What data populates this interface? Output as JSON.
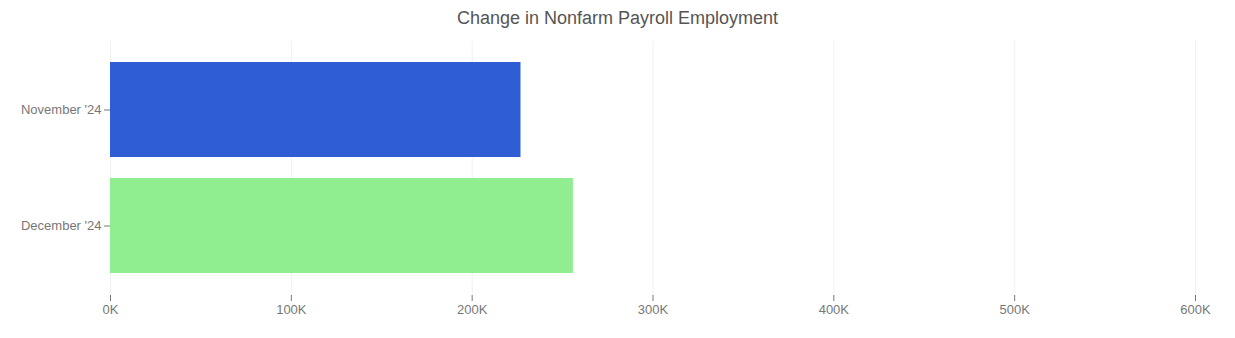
{
  "chart_data": {
    "type": "bar",
    "orientation": "horizontal",
    "title": "Change in Nonfarm Payroll Employment",
    "categories": [
      "December '24",
      "November '24"
    ],
    "values": [
      256000,
      227000
    ],
    "colors": [
      "#90EE90",
      "#2E5DD4"
    ],
    "xlim": [
      0,
      600000
    ],
    "xticks": [
      {
        "value": 0,
        "label": "0K"
      },
      {
        "value": 100000,
        "label": "100K"
      },
      {
        "value": 200000,
        "label": "200K"
      },
      {
        "value": 300000,
        "label": "300K"
      },
      {
        "value": 400000,
        "label": "400K"
      },
      {
        "value": 500000,
        "label": "500K"
      },
      {
        "value": 600000,
        "label": "600K"
      }
    ],
    "grid": true
  }
}
